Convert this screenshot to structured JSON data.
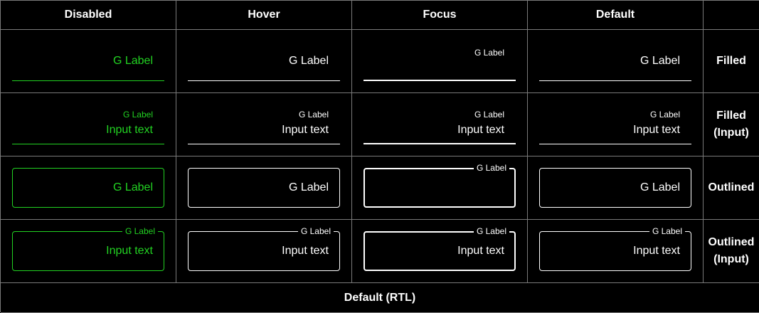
{
  "headers": {
    "disabled": "Disabled",
    "hover": "Hover",
    "focus": "Focus",
    "default": "Default"
  },
  "rows": {
    "filled": [
      "Filled"
    ],
    "filled_input": [
      "Filled",
      "(Input)"
    ],
    "outlined": [
      "Outlined"
    ],
    "outlined_input": [
      "Outlined",
      "(Input)"
    ]
  },
  "field": {
    "label": "G Label",
    "value": "Input text"
  },
  "footer": "Default (RTL)",
  "colors": {
    "background": "#000000",
    "foreground": "#ffffff",
    "disabled": "#22d222",
    "grid": "#7a7a7a"
  }
}
